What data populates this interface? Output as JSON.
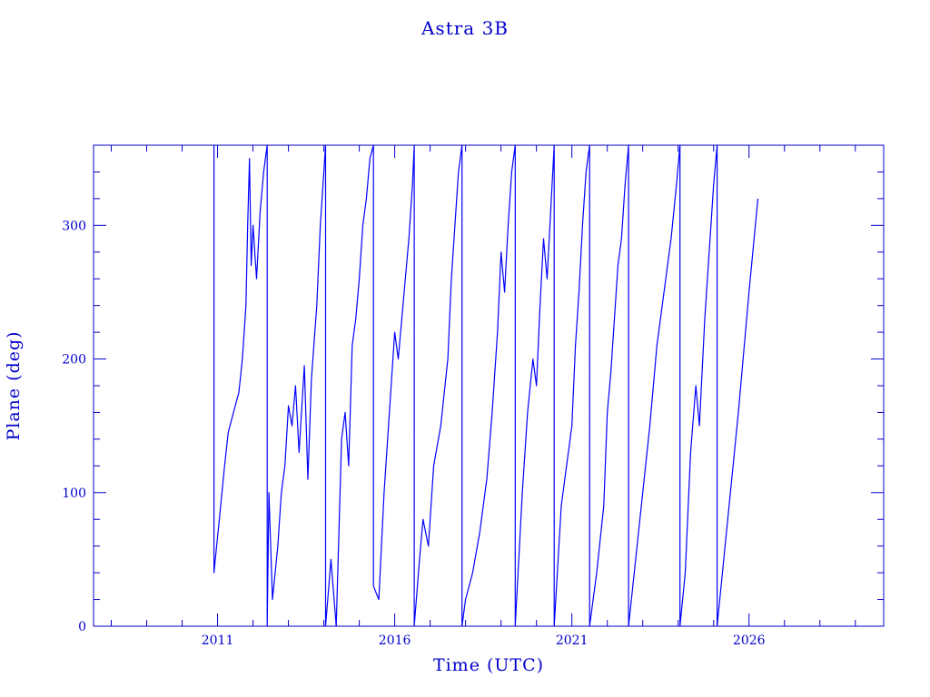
{
  "chart_data": {
    "type": "line",
    "title": "Astra 3B",
    "xlabel": "Time (UTC)",
    "ylabel": "Plane (deg)",
    "xlim": [
      2007.5,
      2029.8
    ],
    "ylim": [
      0,
      360
    ],
    "x_ticks": [
      {
        "value": 2011,
        "label": "2011"
      },
      {
        "value": 2016,
        "label": "2016"
      },
      {
        "value": 2021,
        "label": "2021"
      },
      {
        "value": 2026,
        "label": "2026"
      }
    ],
    "y_ticks": [
      {
        "value": 0,
        "label": "0"
      },
      {
        "value": 100,
        "label": "100"
      },
      {
        "value": 200,
        "label": "200"
      },
      {
        "value": 300,
        "label": "300"
      }
    ],
    "grid": false,
    "color": "#0000ff",
    "series": [
      {
        "values": [
          [
            2010.9,
            320
          ],
          [
            2010.9,
            360
          ],
          [
            2010.9,
            40
          ],
          [
            2011.05,
            80
          ],
          [
            2011.2,
            120
          ],
          [
            2011.3,
            145
          ],
          [
            2011.45,
            160
          ],
          [
            2011.6,
            175
          ],
          [
            2011.7,
            200
          ],
          [
            2011.8,
            240
          ],
          [
            2011.85,
            300
          ],
          [
            2011.9,
            350
          ],
          [
            2011.95,
            270
          ],
          [
            2012.0,
            300
          ],
          [
            2012.1,
            260
          ],
          [
            2012.2,
            310
          ],
          [
            2012.3,
            340
          ],
          [
            2012.4,
            360
          ],
          [
            2012.4,
            0
          ],
          [
            2012.45,
            100
          ],
          [
            2012.55,
            20
          ],
          [
            2012.7,
            60
          ],
          [
            2012.8,
            100
          ],
          [
            2012.9,
            120
          ],
          [
            2013.0,
            165
          ],
          [
            2013.1,
            150
          ],
          [
            2013.2,
            180
          ],
          [
            2013.3,
            130
          ],
          [
            2013.45,
            195
          ],
          [
            2013.55,
            110
          ],
          [
            2013.65,
            185
          ],
          [
            2013.8,
            240
          ],
          [
            2013.9,
            300
          ],
          [
            2014.0,
            340
          ],
          [
            2014.05,
            360
          ],
          [
            2014.05,
            0
          ],
          [
            2014.2,
            50
          ],
          [
            2014.35,
            0
          ],
          [
            2014.5,
            140
          ],
          [
            2014.6,
            160
          ],
          [
            2014.7,
            120
          ],
          [
            2014.8,
            210
          ],
          [
            2014.9,
            230
          ],
          [
            2015.0,
            260
          ],
          [
            2015.1,
            300
          ],
          [
            2015.2,
            320
          ],
          [
            2015.3,
            350
          ],
          [
            2015.4,
            360
          ],
          [
            2015.4,
            30
          ],
          [
            2015.55,
            20
          ],
          [
            2015.7,
            100
          ],
          [
            2015.8,
            140
          ],
          [
            2015.9,
            180
          ],
          [
            2016.0,
            220
          ],
          [
            2016.1,
            200
          ],
          [
            2016.2,
            230
          ],
          [
            2016.3,
            260
          ],
          [
            2016.4,
            290
          ],
          [
            2016.5,
            330
          ],
          [
            2016.55,
            360
          ],
          [
            2016.55,
            0
          ],
          [
            2016.7,
            50
          ],
          [
            2016.8,
            80
          ],
          [
            2016.95,
            60
          ],
          [
            2017.1,
            120
          ],
          [
            2017.3,
            150
          ],
          [
            2017.5,
            200
          ],
          [
            2017.6,
            260
          ],
          [
            2017.7,
            300
          ],
          [
            2017.8,
            340
          ],
          [
            2017.9,
            360
          ],
          [
            2017.9,
            0
          ],
          [
            2018.0,
            20
          ],
          [
            2018.2,
            40
          ],
          [
            2018.4,
            70
          ],
          [
            2018.6,
            110
          ],
          [
            2018.75,
            160
          ],
          [
            2018.9,
            220
          ],
          [
            2019.0,
            280
          ],
          [
            2019.1,
            250
          ],
          [
            2019.2,
            300
          ],
          [
            2019.3,
            340
          ],
          [
            2019.4,
            360
          ],
          [
            2019.4,
            0
          ],
          [
            2019.6,
            100
          ],
          [
            2019.75,
            160
          ],
          [
            2019.9,
            200
          ],
          [
            2020.0,
            180
          ],
          [
            2020.1,
            240
          ],
          [
            2020.2,
            290
          ],
          [
            2020.3,
            260
          ],
          [
            2020.4,
            310
          ],
          [
            2020.5,
            360
          ],
          [
            2020.5,
            0
          ],
          [
            2020.7,
            90
          ],
          [
            2020.85,
            120
          ],
          [
            2021.0,
            150
          ],
          [
            2021.1,
            210
          ],
          [
            2021.2,
            250
          ],
          [
            2021.3,
            300
          ],
          [
            2021.4,
            340
          ],
          [
            2021.5,
            360
          ],
          [
            2021.5,
            0
          ],
          [
            2021.7,
            40
          ],
          [
            2021.9,
            90
          ],
          [
            2022.0,
            160
          ],
          [
            2022.1,
            190
          ],
          [
            2022.2,
            230
          ],
          [
            2022.3,
            270
          ],
          [
            2022.4,
            290
          ],
          [
            2022.5,
            330
          ],
          [
            2022.6,
            360
          ],
          [
            2022.6,
            0
          ],
          [
            2022.8,
            50
          ],
          [
            2023.0,
            100
          ],
          [
            2023.2,
            150
          ],
          [
            2023.4,
            210
          ],
          [
            2023.6,
            250
          ],
          [
            2023.8,
            290
          ],
          [
            2023.95,
            330
          ],
          [
            2024.05,
            360
          ],
          [
            2024.05,
            0
          ],
          [
            2024.2,
            40
          ],
          [
            2024.35,
            130
          ],
          [
            2024.5,
            180
          ],
          [
            2024.6,
            150
          ],
          [
            2024.75,
            230
          ],
          [
            2024.85,
            270
          ],
          [
            2025.0,
            330
          ],
          [
            2025.1,
            360
          ],
          [
            2025.1,
            0
          ],
          [
            2025.4,
            80
          ],
          [
            2025.7,
            160
          ],
          [
            2026.0,
            250
          ],
          [
            2026.25,
            320
          ]
        ]
      }
    ]
  }
}
